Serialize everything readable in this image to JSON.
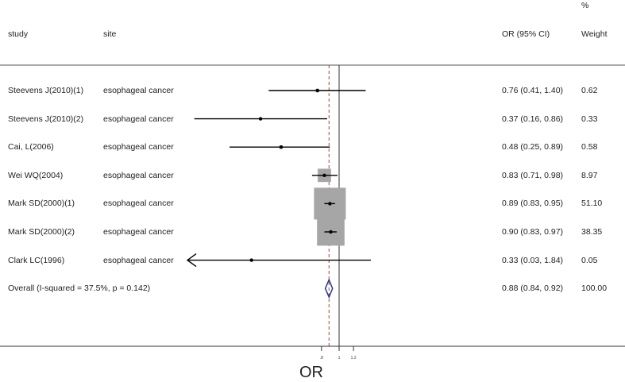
{
  "headers": {
    "study": "study",
    "site": "site",
    "or_ci": "OR (95% CI)",
    "weight_top": "%",
    "weight": "Weight"
  },
  "chart_data": {
    "type": "forest",
    "xlabel": "OR",
    "x_ticks": [
      ".8",
      "1",
      "1.2"
    ],
    "reference_line": 1,
    "overall_line": 0.88,
    "x_range": [
      0.03,
      1.84
    ],
    "studies": [
      {
        "study": "Steevens J(2010)(1)",
        "site": "esophageal cancer",
        "or": 0.76,
        "lo": 0.41,
        "hi": 1.4,
        "ci_text": "0.76 (0.41, 1.40)",
        "weight": 0.62,
        "weight_text": "0.62",
        "arrow_left": false
      },
      {
        "study": "Steevens J(2010)(2)",
        "site": "esophageal cancer",
        "or": 0.37,
        "lo": 0.16,
        "hi": 0.86,
        "ci_text": "0.37 (0.16, 0.86)",
        "weight": 0.33,
        "weight_text": "0.33",
        "arrow_left": false
      },
      {
        "study": "Cai, L(2006)",
        "site": "esophageal cancer",
        "or": 0.48,
        "lo": 0.25,
        "hi": 0.89,
        "ci_text": "0.48 (0.25, 0.89)",
        "weight": 0.58,
        "weight_text": "0.58",
        "arrow_left": false
      },
      {
        "study": "Wei WQ(2004)",
        "site": "esophageal cancer",
        "or": 0.83,
        "lo": 0.71,
        "hi": 0.98,
        "ci_text": "0.83 (0.71, 0.98)",
        "weight": 8.97,
        "weight_text": "8.97",
        "arrow_left": false
      },
      {
        "study": "Mark SD(2000)(1)",
        "site": "esophageal cancer",
        "or": 0.89,
        "lo": 0.83,
        "hi": 0.95,
        "ci_text": "0.89 (0.83, 0.95)",
        "weight": 51.1,
        "weight_text": "51.10",
        "arrow_left": false
      },
      {
        "study": "Mark SD(2000)(2)",
        "site": "esophageal cancer",
        "or": 0.9,
        "lo": 0.83,
        "hi": 0.97,
        "ci_text": "0.90 (0.83, 0.97)",
        "weight": 38.35,
        "weight_text": "38.35",
        "arrow_left": false
      },
      {
        "study": "Clark LC(1996)",
        "site": "esophageal cancer",
        "or": 0.33,
        "lo": 0.03,
        "hi": 1.84,
        "ci_text": "0.33 (0.03, 1.84)",
        "weight": 0.05,
        "weight_text": "0.05",
        "arrow_left": true
      }
    ],
    "overall": {
      "label": "Overall  (I-squared = 37.5%, p = 0.142)",
      "or": 0.88,
      "lo": 0.84,
      "hi": 0.92,
      "ci_text": "0.88 (0.84, 0.92)",
      "weight_text": "100.00"
    }
  }
}
